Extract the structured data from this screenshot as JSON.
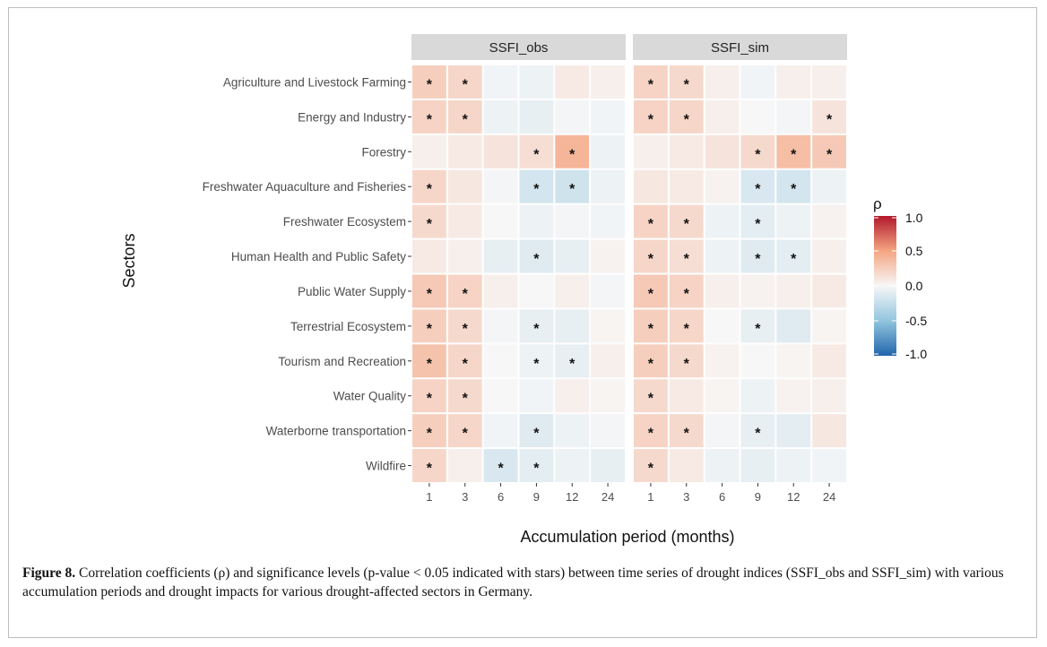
{
  "chart_data": {
    "type": "heatmap",
    "xlabel": "Accumulation period (months)",
    "ylabel": "Sectors",
    "x_categories": [
      "1",
      "3",
      "6",
      "9",
      "12",
      "24"
    ],
    "y_categories": [
      "Agriculture and Livestock Farming",
      "Energy and Industry",
      "Forestry",
      "Freshwater Aquaculture and Fisheries",
      "Freshwater Ecosystem",
      "Human Health and Public Safety",
      "Public Water Supply",
      "Terrestrial Ecosystem",
      "Tourism and Recreation",
      "Water Quality",
      "Waterborne transportation",
      "Wildfire"
    ],
    "legend": {
      "title": "ρ",
      "ticks": [
        "1.0",
        "0.5",
        "0.0",
        "-0.5",
        "-1.0"
      ],
      "tick_values": [
        1.0,
        0.5,
        0.0,
        -0.5,
        -1.0
      ],
      "range": [
        -1.0,
        1.0
      ],
      "colors": {
        "low": "#2166ac",
        "mid": "#f7f7f7",
        "high": "#b2182b"
      },
      "placement": "right"
    },
    "significance_marker": "*",
    "panels": [
      {
        "title": "SSFI_obs",
        "values": [
          [
            0.25,
            0.2,
            -0.03,
            -0.05,
            0.08,
            0.05
          ],
          [
            0.22,
            0.2,
            -0.05,
            -0.08,
            -0.02,
            -0.03
          ],
          [
            0.05,
            0.08,
            0.12,
            0.15,
            0.4,
            -0.05
          ],
          [
            0.2,
            0.1,
            -0.02,
            -0.18,
            -0.2,
            -0.05
          ],
          [
            0.18,
            0.08,
            0.0,
            -0.05,
            -0.02,
            -0.03
          ],
          [
            0.08,
            0.05,
            -0.08,
            -0.12,
            -0.08,
            0.03
          ],
          [
            0.28,
            0.22,
            0.05,
            0.0,
            0.05,
            -0.02
          ],
          [
            0.25,
            0.18,
            -0.02,
            -0.08,
            -0.08,
            0.02
          ],
          [
            0.32,
            0.2,
            0.0,
            -0.05,
            -0.08,
            0.05
          ],
          [
            0.22,
            0.18,
            0.0,
            -0.03,
            0.05,
            0.02
          ],
          [
            0.25,
            0.2,
            -0.03,
            -0.12,
            -0.05,
            -0.02
          ],
          [
            0.2,
            0.05,
            -0.15,
            -0.1,
            -0.05,
            -0.08
          ]
        ],
        "significant": [
          [
            true,
            true,
            false,
            false,
            false,
            false
          ],
          [
            true,
            true,
            false,
            false,
            false,
            false
          ],
          [
            false,
            false,
            false,
            true,
            true,
            false
          ],
          [
            true,
            false,
            false,
            true,
            true,
            false
          ],
          [
            true,
            false,
            false,
            false,
            false,
            false
          ],
          [
            false,
            false,
            false,
            true,
            false,
            false
          ],
          [
            true,
            true,
            false,
            false,
            false,
            false
          ],
          [
            true,
            true,
            false,
            true,
            false,
            false
          ],
          [
            true,
            true,
            false,
            true,
            true,
            false
          ],
          [
            true,
            true,
            false,
            false,
            false,
            false
          ],
          [
            true,
            true,
            false,
            true,
            false,
            false
          ],
          [
            true,
            false,
            true,
            true,
            false,
            false
          ]
        ]
      },
      {
        "title": "SSFI_sim",
        "values": [
          [
            0.22,
            0.18,
            0.05,
            -0.03,
            0.05,
            0.05
          ],
          [
            0.22,
            0.2,
            0.05,
            0.0,
            -0.02,
            0.12
          ],
          [
            0.05,
            0.08,
            0.12,
            0.18,
            0.35,
            0.28
          ],
          [
            0.1,
            0.08,
            0.03,
            -0.15,
            -0.18,
            -0.05
          ],
          [
            0.22,
            0.18,
            -0.05,
            -0.1,
            -0.05,
            0.03
          ],
          [
            0.2,
            0.15,
            -0.05,
            -0.12,
            -0.1,
            0.05
          ],
          [
            0.28,
            0.22,
            0.05,
            0.03,
            0.05,
            0.08
          ],
          [
            0.25,
            0.2,
            0.0,
            -0.08,
            -0.12,
            0.02
          ],
          [
            0.25,
            0.18,
            0.03,
            0.0,
            0.02,
            0.08
          ],
          [
            0.18,
            0.08,
            0.02,
            -0.05,
            0.03,
            0.05
          ],
          [
            0.22,
            0.18,
            -0.02,
            -0.08,
            -0.1,
            0.1
          ],
          [
            0.18,
            0.08,
            -0.05,
            -0.08,
            -0.05,
            -0.03
          ]
        ],
        "significant": [
          [
            true,
            true,
            false,
            false,
            false,
            false
          ],
          [
            true,
            true,
            false,
            false,
            false,
            true
          ],
          [
            false,
            false,
            false,
            true,
            true,
            true
          ],
          [
            false,
            false,
            false,
            true,
            true,
            false
          ],
          [
            true,
            true,
            false,
            true,
            false,
            false
          ],
          [
            true,
            true,
            false,
            true,
            true,
            false
          ],
          [
            true,
            true,
            false,
            false,
            false,
            false
          ],
          [
            true,
            true,
            false,
            true,
            false,
            false
          ],
          [
            true,
            true,
            false,
            false,
            false,
            false
          ],
          [
            true,
            false,
            false,
            false,
            false,
            false
          ],
          [
            true,
            true,
            false,
            true,
            false,
            false
          ],
          [
            true,
            false,
            false,
            false,
            false,
            false
          ]
        ]
      }
    ]
  },
  "caption": {
    "label": "Figure 8.",
    "text": " Correlation coefficients (ρ) and significance levels (p-value < 0.05 indicated with stars) between time series of drought indices (SSFI_obs and SSFI_sim) with various accumulation periods and drought impacts for various drought-affected sectors in Germany."
  }
}
